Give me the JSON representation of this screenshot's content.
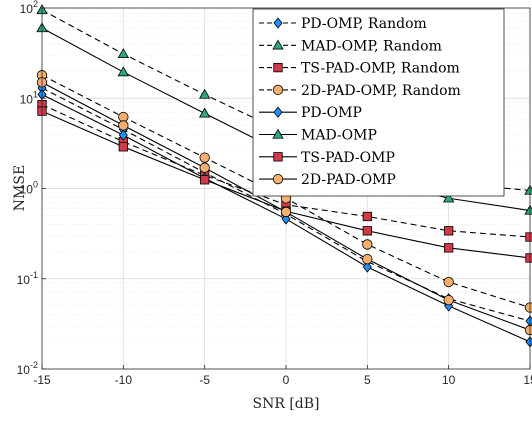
{
  "chart_data": {
    "type": "line",
    "xlabel": "SNR [dB]",
    "ylabel": "NMSE",
    "yscale": "log",
    "xlim": [
      -15,
      15
    ],
    "ylim": [
      0.01,
      100
    ],
    "grid": true,
    "legend_placement": "top-right",
    "x_ticks": [
      "-15",
      "-10",
      "-5",
      "0",
      "5",
      "10",
      "15"
    ],
    "y_ticks": [
      {
        "base": "10",
        "exp": "-2"
      },
      {
        "base": "10",
        "exp": "-1"
      },
      {
        "base": "10",
        "exp": "0"
      },
      {
        "base": "10",
        "exp": "1"
      },
      {
        "base": "10",
        "exp": "2"
      }
    ],
    "x": [
      -15,
      -10,
      -5,
      0,
      5,
      10,
      15
    ],
    "series": [
      {
        "name": "PD-OMP, Random",
        "marker": "diamond",
        "dash": true,
        "color": "#1e90ff",
        "values": [
          13,
          4.5,
          1.5,
          0.52,
          0.155,
          0.06,
          0.034
        ]
      },
      {
        "name": "MAD-OMP, Random",
        "marker": "triangle",
        "dash": true,
        "color": "#2eaa7a",
        "values": [
          95,
          31,
          11,
          4.1,
          1.9,
          1.15,
          0.95
        ]
      },
      {
        "name": "TS-PAD-OMP, Random",
        "marker": "square",
        "dash": true,
        "color": "#d03a48",
        "values": [
          8.5,
          3.3,
          1.4,
          0.66,
          0.49,
          0.34,
          0.29
        ]
      },
      {
        "name": "2D-PAD-OMP, Random",
        "marker": "circle",
        "dash": true,
        "color": "#f5b070",
        "values": [
          18,
          6.2,
          2.2,
          0.78,
          0.24,
          0.092,
          0.048
        ]
      },
      {
        "name": "PD-OMP",
        "marker": "diamond",
        "dash": false,
        "color": "#1e90ff",
        "values": [
          11,
          3.9,
          1.3,
          0.46,
          0.135,
          0.05,
          0.02
        ]
      },
      {
        "name": "MAD-OMP",
        "marker": "triangle",
        "dash": false,
        "color": "#2eaa7a",
        "values": [
          60,
          19.5,
          6.8,
          2.4,
          1.3,
          0.78,
          0.57
        ]
      },
      {
        "name": "TS-PAD-OMP",
        "marker": "square",
        "dash": false,
        "color": "#d03a48",
        "values": [
          7.2,
          2.9,
          1.25,
          0.56,
          0.34,
          0.22,
          0.17
        ]
      },
      {
        "name": "2D-PAD-OMP",
        "marker": "circle",
        "dash": false,
        "color": "#f5b070",
        "values": [
          15,
          5,
          1.7,
          0.55,
          0.165,
          0.058,
          0.027
        ]
      }
    ]
  }
}
